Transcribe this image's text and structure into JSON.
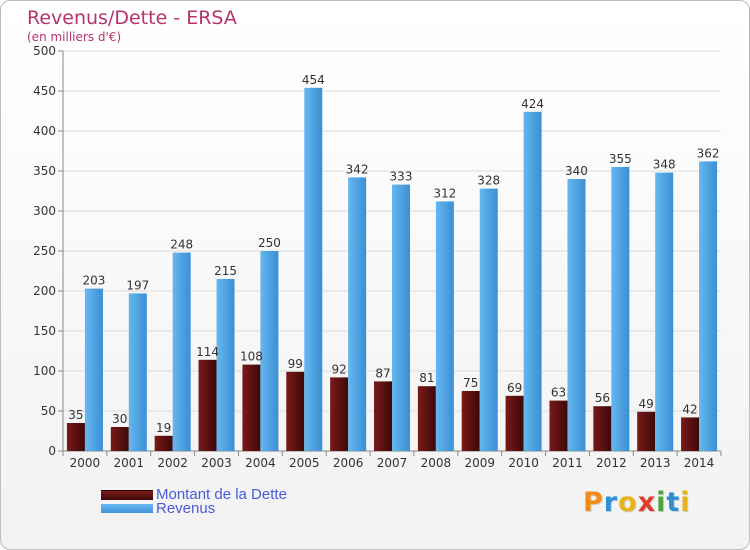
{
  "header": {
    "title": "Revenus/Dette - ERSA",
    "subtitle": "(en milliers d'€)"
  },
  "legend": {
    "debt_label": "Montant de la Dette",
    "revenue_label": "Revenus"
  },
  "logo": {
    "letters": [
      "P",
      "r",
      "o",
      "x",
      "i",
      "t",
      "i"
    ],
    "colors": [
      "#f28a1c",
      "#2e8fd6",
      "#e8b21b",
      "#e23a2b",
      "#4aa83c",
      "#2e8fd6",
      "#e8b21b"
    ]
  },
  "colors": {
    "debt_top": "#7a1a1a",
    "debt_bottom": "#3d0808",
    "revenue_top": "#66b7ef",
    "revenue_bottom": "#3a8fd4",
    "title": "#b5336a",
    "legend_text": "#4a5bd6"
  },
  "chart_data": {
    "type": "bar",
    "categories": [
      "2000",
      "2001",
      "2002",
      "2003",
      "2004",
      "2005",
      "2006",
      "2007",
      "2008",
      "2009",
      "2010",
      "2011",
      "2012",
      "2013",
      "2014"
    ],
    "series": [
      {
        "name": "Montant de la Dette",
        "values": [
          35,
          30,
          19,
          114,
          108,
          99,
          92,
          87,
          81,
          75,
          69,
          63,
          56,
          49,
          42
        ]
      },
      {
        "name": "Revenus",
        "values": [
          203,
          197,
          248,
          215,
          250,
          454,
          342,
          333,
          312,
          328,
          424,
          340,
          355,
          348,
          362
        ]
      }
    ],
    "title": "Revenus/Dette - ERSA",
    "ylabel": "(en milliers d'€)",
    "ylim": [
      0,
      500
    ],
    "yticks": [
      0,
      50,
      100,
      150,
      200,
      250,
      300,
      350,
      400,
      450,
      500
    ],
    "grid": true,
    "legend_position": "bottom-left"
  }
}
